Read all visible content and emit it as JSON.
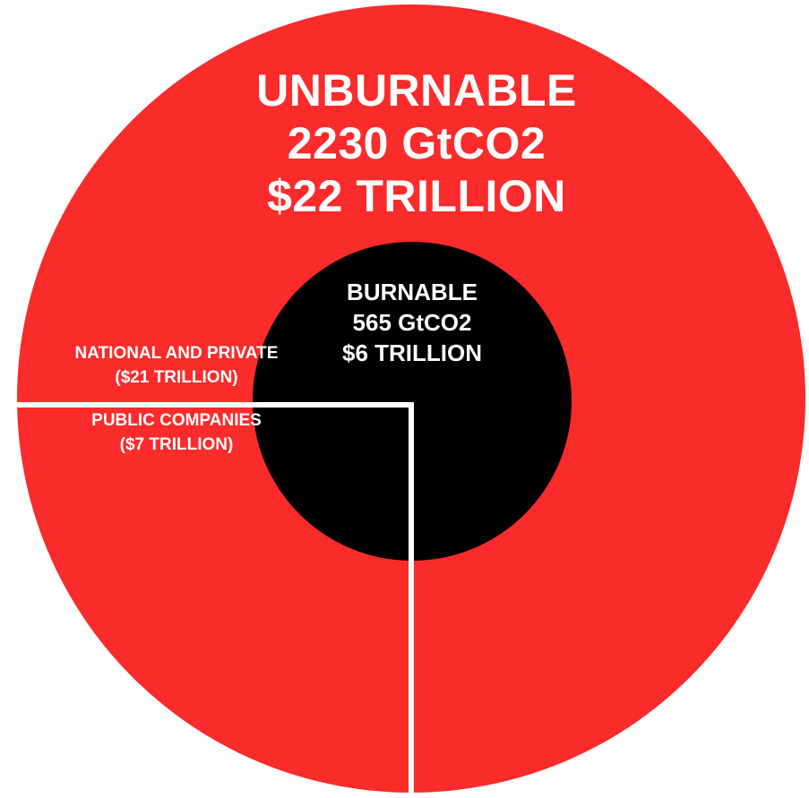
{
  "colors": {
    "unburnable": "#f92b2b",
    "burnable": "#000000",
    "divider": "#ffffff",
    "text": "#ffffff"
  },
  "unburnable": {
    "title": "UNBURNABLE",
    "amount": "2230 GtCO2",
    "value": "$22 TRILLION"
  },
  "burnable": {
    "title": "BURNABLE",
    "amount": "565 GtCO2",
    "value": "$6 TRILLION"
  },
  "segments": {
    "national_and_private": {
      "label": "NATIONAL AND PRIVATE",
      "value": "($21 TRILLION)"
    },
    "public_companies": {
      "label": "PUBLIC COMPANIES",
      "value": "($7 TRILLION)"
    }
  }
}
